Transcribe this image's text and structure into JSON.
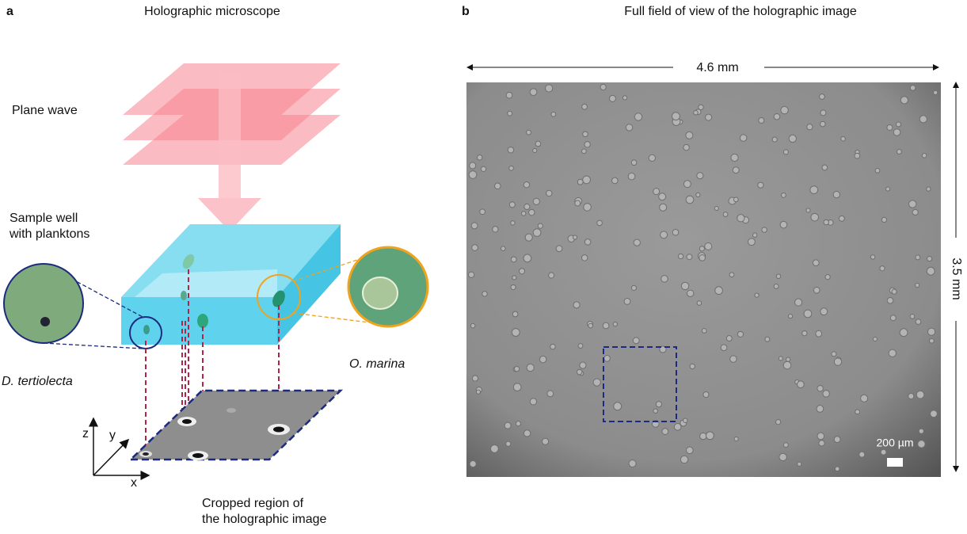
{
  "panel_a": {
    "letter": "a",
    "title": "Holographic microscope",
    "plane_wave": "Plane wave",
    "sample_well": [
      "Sample well",
      "with planktons"
    ],
    "species_left": "D. tertiolecta",
    "species_right": "O. marina",
    "axes": {
      "z": "z",
      "y": "y",
      "x": "x"
    },
    "cropped": [
      "Cropped region of",
      "the holographic image"
    ]
  },
  "panel_b": {
    "letter": "b",
    "title": "Full field of view of the holographic image",
    "width_label": "4.6 mm",
    "height_label": "3.5 mm",
    "scale_bar": "200 µm"
  }
}
